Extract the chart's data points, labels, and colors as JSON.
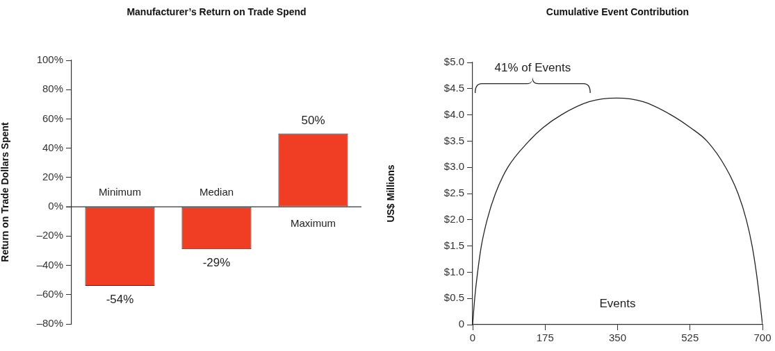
{
  "chart_data": [
    {
      "type": "bar",
      "title": "Manufacturer’s Return on Trade Spend",
      "ylabel": "Return on Trade Dollars Spent",
      "categories": [
        "Minimum",
        "Median",
        "Maximum"
      ],
      "values": [
        -54,
        -29,
        50
      ],
      "color": "#ef3e23",
      "value_labels": [
        "-54%",
        "-29%",
        "50%"
      ],
      "ylim": [
        -80,
        100
      ],
      "yticks": [
        {
          "value": -80,
          "label": "–80%"
        },
        {
          "value": -60,
          "label": "–60%"
        },
        {
          "value": -40,
          "label": "–40%"
        },
        {
          "value": -20,
          "label": "–20%"
        },
        {
          "value": 0,
          "label": "0%"
        },
        {
          "value": 20,
          "label": "20%"
        },
        {
          "value": 40,
          "label": "40%"
        },
        {
          "value": 60,
          "label": "60%"
        },
        {
          "value": 80,
          "label": "80%"
        },
        {
          "value": 100,
          "label": "100%"
        }
      ],
      "grid": false,
      "legend": false
    },
    {
      "type": "line",
      "title": "Cumulative Event Contribution",
      "xlabel": "Events",
      "ylabel": "US$ Millions",
      "x": [
        0,
        5,
        12,
        21,
        35,
        55,
        85,
        136,
        169,
        214,
        281,
        348,
        412,
        479,
        527,
        566,
        611,
        641,
        661,
        675,
        685,
        693,
        700
      ],
      "values": [
        0,
        0.5,
        1.0,
        1.5,
        2.0,
        2.5,
        3.0,
        3.5,
        3.75,
        4.0,
        4.25,
        4.32,
        4.25,
        4.0,
        3.75,
        3.5,
        3.0,
        2.5,
        2.0,
        1.5,
        1.0,
        0.5,
        0
      ],
      "color": "#222222",
      "marker": "none",
      "line_style": "solid",
      "annotations": [
        "41% of Events"
      ],
      "xlim": [
        0,
        700
      ],
      "xticks": [
        0,
        175,
        350,
        525,
        700
      ],
      "ylim": [
        0,
        5.0
      ],
      "yticks": [
        {
          "value": 0,
          "label": "0"
        },
        {
          "value": 0.5,
          "label": "$0.5"
        },
        {
          "value": 1.0,
          "label": "$1.0"
        },
        {
          "value": 1.5,
          "label": "$1.5"
        },
        {
          "value": 2.0,
          "label": "$2.0"
        },
        {
          "value": 2.5,
          "label": "$2.5"
        },
        {
          "value": 3.0,
          "label": "$3.0"
        },
        {
          "value": 3.5,
          "label": "$3.5"
        },
        {
          "value": 4.0,
          "label": "$4.0"
        },
        {
          "value": 4.5,
          "label": "$4.5"
        },
        {
          "value": 5.0,
          "label": "$5.0"
        }
      ],
      "grid": false,
      "legend": false
    }
  ]
}
